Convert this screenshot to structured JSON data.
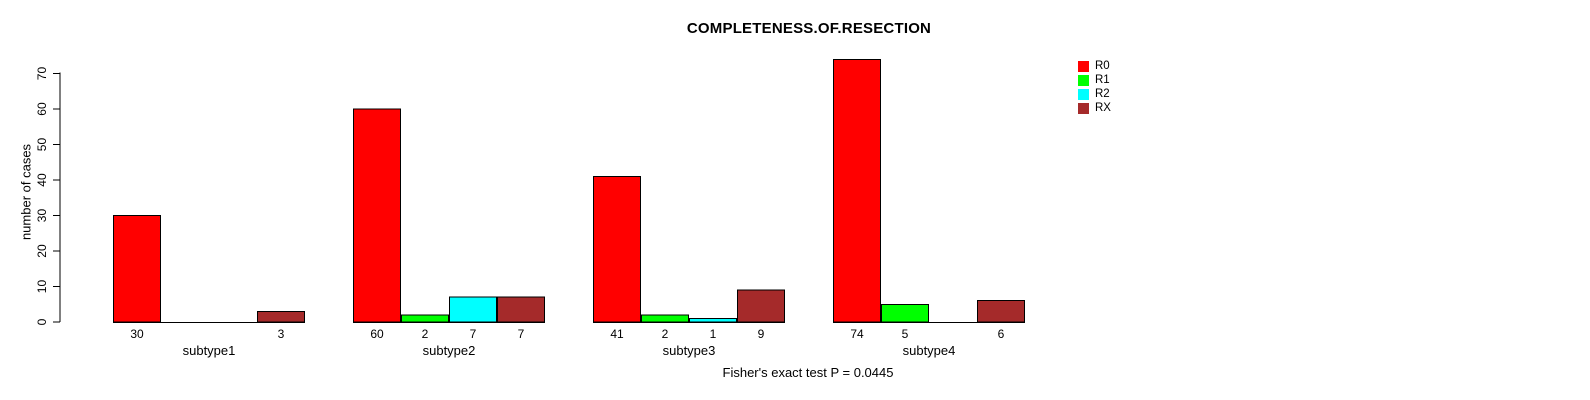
{
  "title": "COMPLETENESS.OF.RESECTION",
  "ylabel": "number of cases",
  "footnote": "Fisher's exact test P = 0.0445",
  "chart_data": {
    "type": "bar",
    "grouped": true,
    "title": "COMPLETENESS.OF.RESECTION",
    "xlabel": "",
    "ylabel": "number of cases",
    "categories": [
      "subtype1",
      "subtype2",
      "subtype3",
      "subtype4"
    ],
    "series": [
      {
        "name": "R0",
        "color": "#FF0000",
        "values": [
          30,
          60,
          41,
          74
        ]
      },
      {
        "name": "R1",
        "color": "#00FF00",
        "values": [
          0,
          2,
          2,
          5
        ]
      },
      {
        "name": "R2",
        "color": "#00FFFF",
        "values": [
          0,
          7,
          1,
          0
        ]
      },
      {
        "name": "RX",
        "color": "#A52A2A",
        "values": [
          3,
          7,
          9,
          6
        ]
      }
    ],
    "bar_value_labels": {
      "subtype1": [
        30,
        null,
        null,
        3
      ],
      "subtype2": [
        60,
        2,
        7,
        7
      ],
      "subtype3": [
        41,
        2,
        1,
        9
      ],
      "subtype4": [
        74,
        5,
        null,
        6
      ]
    },
    "ylim": [
      0,
      74
    ],
    "yticks": [
      0,
      10,
      20,
      30,
      40,
      50,
      60,
      70
    ],
    "grid": false,
    "legend_position": "top-right",
    "bar_border_color": "#000000",
    "annotation": "Fisher's exact test P = 0.0445"
  }
}
